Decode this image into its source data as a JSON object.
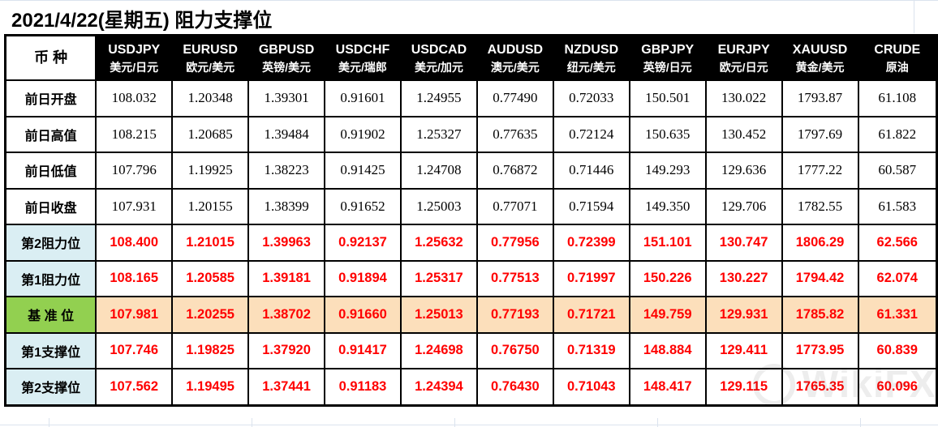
{
  "title": "2021/4/22(星期五) 阻力支撑位",
  "watermark": {
    "icon": "circle-logo",
    "text": "WikiFX"
  },
  "colors": {
    "value_red": "#FF0000",
    "header_bg": "#000000",
    "header_text": "#FFFFFF",
    "label_blue": "#DAEEF3",
    "pivot_green": "#92D050",
    "pivot_peach": "#FCDFBB",
    "border": "#000000"
  },
  "table": {
    "corner_label": "币 种",
    "columns": [
      {
        "code": "USDJPY",
        "cn": "美元/日元"
      },
      {
        "code": "EURUSD",
        "cn": "欧元/美元"
      },
      {
        "code": "GBPUSD",
        "cn": "英镑/美元"
      },
      {
        "code": "USDCHF",
        "cn": "美元/瑞郎"
      },
      {
        "code": "USDCAD",
        "cn": "美元/加元"
      },
      {
        "code": "AUDUSD",
        "cn": "澳元/美元"
      },
      {
        "code": "NZDUSD",
        "cn": "纽元/美元"
      },
      {
        "code": "GBPJPY",
        "cn": "英镑/日元"
      },
      {
        "code": "EURJPY",
        "cn": "欧元/日元"
      },
      {
        "code": "XAUUSD",
        "cn": "黄金/美元"
      },
      {
        "code": "CRUDE",
        "cn": "原油"
      }
    ],
    "rows": [
      {
        "label": "前日开盘",
        "style": "plain",
        "values": [
          "108.032",
          "1.20348",
          "1.39301",
          "0.91601",
          "1.24955",
          "0.77490",
          "0.72033",
          "150.501",
          "130.022",
          "1793.87",
          "61.108"
        ]
      },
      {
        "label": "前日高值",
        "style": "plain",
        "values": [
          "108.215",
          "1.20685",
          "1.39484",
          "0.91902",
          "1.25327",
          "0.77635",
          "0.72124",
          "150.635",
          "130.452",
          "1797.69",
          "61.822"
        ]
      },
      {
        "label": "前日低值",
        "style": "plain",
        "values": [
          "107.796",
          "1.19925",
          "1.38223",
          "0.91425",
          "1.24708",
          "0.76872",
          "0.71446",
          "149.293",
          "129.636",
          "1777.22",
          "60.587"
        ]
      },
      {
        "label": "前日收盘",
        "style": "plain",
        "values": [
          "107.931",
          "1.20155",
          "1.38399",
          "0.91652",
          "1.25003",
          "0.77071",
          "0.71594",
          "149.350",
          "129.706",
          "1782.55",
          "61.583"
        ]
      },
      {
        "label": "第2阻力位",
        "style": "level",
        "values": [
          "108.400",
          "1.21015",
          "1.39963",
          "0.92137",
          "1.25632",
          "0.77956",
          "0.72399",
          "151.101",
          "130.747",
          "1806.29",
          "62.566"
        ]
      },
      {
        "label": "第1阻力位",
        "style": "level",
        "values": [
          "108.165",
          "1.20585",
          "1.39181",
          "0.91894",
          "1.25317",
          "0.77513",
          "0.71997",
          "150.226",
          "130.227",
          "1794.42",
          "62.074"
        ]
      },
      {
        "label": "基 准 位",
        "style": "pivot",
        "values": [
          "107.981",
          "1.20255",
          "1.38702",
          "0.91660",
          "1.25013",
          "0.77193",
          "0.71721",
          "149.759",
          "129.931",
          "1785.82",
          "61.331"
        ]
      },
      {
        "label": "第1支撑位",
        "style": "level",
        "values": [
          "107.746",
          "1.19825",
          "1.37920",
          "0.91417",
          "1.24698",
          "0.76750",
          "0.71319",
          "148.884",
          "129.411",
          "1773.95",
          "60.839"
        ]
      },
      {
        "label": "第2支撑位",
        "style": "level",
        "values": [
          "107.562",
          "1.19495",
          "1.37441",
          "0.91183",
          "1.24394",
          "0.76430",
          "0.71043",
          "148.417",
          "129.115",
          "1765.35",
          "60.096"
        ]
      }
    ]
  }
}
